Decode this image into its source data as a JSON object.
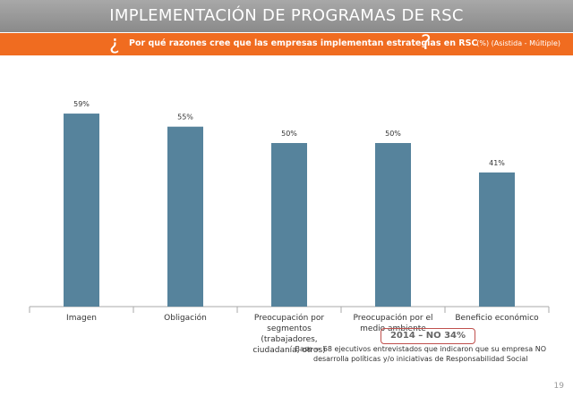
{
  "slide": {
    "title": "IMPLEMENTACIÓN DE PROGRAMAS DE RSC",
    "question": {
      "open": "¿",
      "text": "Por qué razones cree que las empresas implementan estrategias en RSC",
      "close": "?"
    },
    "note": "(%) (Asistida - Múltiple)",
    "callout": "2014 – NO 34%",
    "base": [
      "Base = 68 ejecutivos entrevistados que indicaron que su empresa NO",
      "desarrolla políticas y/o iniciativas de Responsabilidad Social"
    ],
    "page": "19"
  },
  "chart_data": {
    "type": "bar",
    "categories": [
      "Imagen",
      "Obligación",
      "Preocupación por segmentos (trabajadores, ciudadanía, otros)",
      "Preocupación por el medio ambiente",
      "Beneficio económico"
    ],
    "values": [
      59,
      55,
      50,
      50,
      41
    ],
    "value_labels": [
      "59%",
      "55%",
      "50%",
      "50%",
      "41%"
    ],
    "color": "#56839c"
  }
}
